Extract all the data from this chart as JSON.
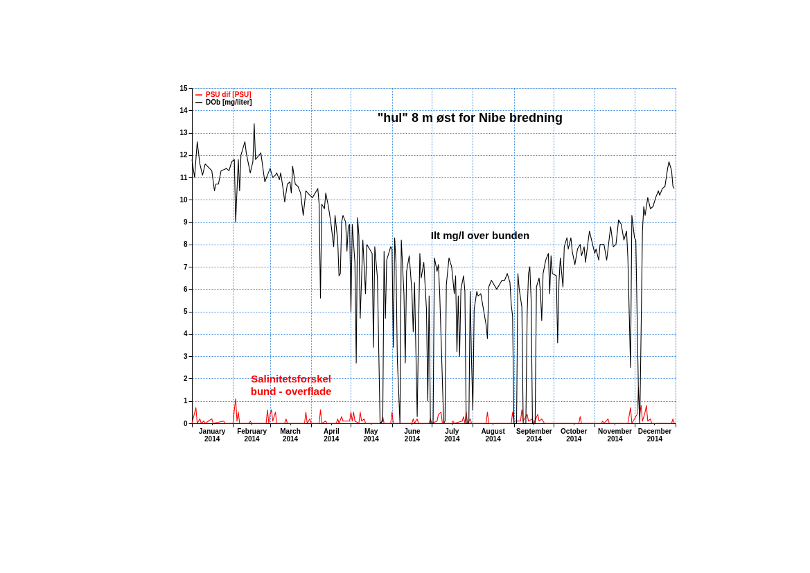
{
  "chart_data": {
    "type": "line",
    "title": "\"hul\" 8 m øst for Nibe bredning",
    "xlim": [
      "2014-01-01",
      "2015-01-01"
    ],
    "xticks": [
      {
        "value": "2014-01-01",
        "label": null
      },
      {
        "value": "2014-01-16",
        "label": "January 2014"
      },
      {
        "value": "2014-02-01",
        "label": null
      },
      {
        "value": "2014-02-15",
        "label": "February 2014"
      },
      {
        "value": "2014-03-01",
        "label": null
      },
      {
        "value": "2014-03-16",
        "label": "March 2014"
      },
      {
        "value": "2014-04-01",
        "label": null
      },
      {
        "value": "2014-04-16",
        "label": "April 2014"
      },
      {
        "value": "2014-05-01",
        "label": null
      },
      {
        "value": "2014-05-16",
        "label": "May 2014"
      },
      {
        "value": "2014-06-01",
        "label": null
      },
      {
        "value": "2014-06-16",
        "label": "June 2014"
      },
      {
        "value": "2014-07-01",
        "label": null
      },
      {
        "value": "2014-07-16",
        "label": "July 2014"
      },
      {
        "value": "2014-08-01",
        "label": null
      },
      {
        "value": "2014-08-16",
        "label": "August 2014"
      },
      {
        "value": "2014-09-01",
        "label": null
      },
      {
        "value": "2014-09-16",
        "label": "September 2014"
      },
      {
        "value": "2014-10-01",
        "label": null
      },
      {
        "value": "2014-10-16",
        "label": "October 2014"
      },
      {
        "value": "2014-11-01",
        "label": null
      },
      {
        "value": "2014-11-16",
        "label": "November 2014"
      },
      {
        "value": "2014-12-01",
        "label": null
      },
      {
        "value": "2014-12-16",
        "label": "December 2014"
      },
      {
        "value": "2015-01-01",
        "label": null
      }
    ],
    "ylim": [
      0,
      15
    ],
    "yticks": [
      0,
      1,
      2,
      3,
      4,
      5,
      6,
      7,
      8,
      9,
      10,
      11,
      12,
      13,
      14,
      15
    ],
    "grid": true,
    "legend": "top left",
    "marker": "none",
    "line_style": "solid",
    "annotations": [
      "Salinitetsforskel\nbund - overflade",
      "Ilt mg/l over bunden"
    ],
    "series": [
      {
        "name": "PSU dif [PSU]",
        "color": "#ff0000",
        "x": [
          "2014-01-01",
          "2014-01-04",
          "2014-01-05",
          "2014-01-07",
          "2014-01-08",
          "2014-01-10",
          "2014-01-11",
          "2014-01-16",
          "2014-01-17",
          "2014-01-25",
          "2014-01-26",
          "2014-02-01",
          "2014-02-02",
          "2014-02-03",
          "2014-02-04",
          "2014-02-05",
          "2014-02-06",
          "2014-02-13",
          "2014-02-14",
          "2014-02-15",
          "2014-02-26",
          "2014-02-27",
          "2014-02-28",
          "2014-03-01",
          "2014-03-02",
          "2014-03-03",
          "2014-03-05",
          "2014-03-06",
          "2014-03-12",
          "2014-03-13",
          "2014-03-14",
          "2014-03-27",
          "2014-03-28",
          "2014-03-29",
          "2014-03-31",
          "2014-04-01",
          "2014-04-07",
          "2014-04-08",
          "2014-04-09",
          "2014-04-12",
          "2014-04-13",
          "2014-04-20",
          "2014-04-21",
          "2014-04-22",
          "2014-04-24",
          "2014-04-25",
          "2014-04-30",
          "2014-05-01",
          "2014-05-02",
          "2014-05-03",
          "2014-05-04",
          "2014-05-07",
          "2014-05-08",
          "2014-05-09",
          "2014-05-11",
          "2014-05-12",
          "2014-05-24",
          "2014-05-25",
          "2014-05-26",
          "2014-05-31",
          "2014-06-01",
          "2014-06-02",
          "2014-06-16",
          "2014-06-17",
          "2014-06-18",
          "2014-06-20",
          "2014-06-21",
          "2014-06-29",
          "2014-06-30",
          "2014-07-01",
          "2014-07-05",
          "2014-07-06",
          "2014-07-08",
          "2014-07-09",
          "2014-07-16",
          "2014-07-17",
          "2014-07-18",
          "2014-07-24",
          "2014-07-25",
          "2014-07-26",
          "2014-07-27",
          "2014-07-28",
          "2014-07-30",
          "2014-07-31",
          "2014-08-11",
          "2014-08-12",
          "2014-08-13",
          "2014-08-30",
          "2014-08-31",
          "2014-09-01",
          "2014-09-06",
          "2014-09-07",
          "2014-09-08",
          "2014-09-11",
          "2014-09-12",
          "2014-09-15",
          "2014-09-16",
          "2014-09-19",
          "2014-09-20",
          "2014-09-22",
          "2014-09-24",
          "2014-10-20",
          "2014-10-21",
          "2014-10-22",
          "2014-11-06",
          "2014-11-07",
          "2014-11-08",
          "2014-11-11",
          "2014-11-12",
          "2014-11-26",
          "2014-11-28",
          "2014-11-29",
          "2014-12-01",
          "2014-12-03",
          "2014-12-04",
          "2014-12-05",
          "2014-12-06",
          "2014-12-07",
          "2014-12-09",
          "2014-12-10",
          "2014-12-11",
          "2014-12-13",
          "2014-12-14",
          "2014-12-29",
          "2014-12-30",
          "2014-12-31"
        ],
        "values": [
          0,
          0.7,
          0,
          0.2,
          0,
          0.1,
          0,
          0.2,
          0,
          0.1,
          0,
          0,
          0.6,
          1.1,
          0.1,
          0.5,
          0,
          0,
          0.1,
          0,
          0,
          0.6,
          0,
          0.4,
          0.6,
          0.1,
          0.5,
          0,
          0,
          0.2,
          0,
          0,
          0.5,
          0,
          0.2,
          0,
          0,
          0.6,
          0,
          0.1,
          0,
          0,
          0.2,
          0,
          0.3,
          0.1,
          0.1,
          0.5,
          0.1,
          0.5,
          0.1,
          0,
          0.5,
          0.1,
          0.2,
          0,
          0,
          0.3,
          0,
          0,
          0.5,
          0,
          0,
          0.2,
          0,
          0.2,
          0,
          0,
          0.2,
          0,
          0.1,
          0.4,
          0.5,
          0,
          0,
          0.1,
          0,
          0.1,
          0.3,
          0,
          0.5,
          0,
          0.2,
          0,
          0,
          0.5,
          0,
          0,
          0.5,
          0.1,
          0.1,
          0.6,
          0.1,
          0.4,
          0.1,
          0.2,
          0,
          0.4,
          0.1,
          0.2,
          0,
          0,
          0.3,
          0,
          0,
          0.1,
          0,
          0.2,
          0,
          0,
          0.7,
          0,
          0.2,
          0.4,
          1.6,
          0.4,
          0.8,
          0.1,
          0.5,
          0.8,
          0.1,
          0.2,
          0,
          0,
          0.2,
          0
        ]
      },
      {
        "name": "DOb [mg/liter]",
        "color": "#000000",
        "x": [
          "2014-01-01",
          "2014-01-03",
          "2014-01-05",
          "2014-01-07",
          "2014-01-09",
          "2014-01-11",
          "2014-01-16",
          "2014-01-18",
          "2014-01-19",
          "2014-01-21",
          "2014-01-23",
          "2014-01-27",
          "2014-01-29",
          "2014-01-31",
          "2014-02-02",
          "2014-02-03",
          "2014-02-05",
          "2014-02-06",
          "2014-02-07",
          "2014-02-10",
          "2014-02-11",
          "2014-02-14",
          "2014-02-16",
          "2014-02-17",
          "2014-02-18",
          "2014-02-22",
          "2014-02-25",
          "2014-02-27",
          "2014-03-01",
          "2014-03-03",
          "2014-03-05",
          "2014-03-06",
          "2014-03-08",
          "2014-03-09",
          "2014-03-11",
          "2014-03-12",
          "2014-03-14",
          "2014-03-16",
          "2014-03-17",
          "2014-03-18",
          "2014-03-20",
          "2014-03-22",
          "2014-03-24",
          "2014-03-26",
          "2014-03-28",
          "2014-03-31",
          "2014-04-02",
          "2014-04-06",
          "2014-04-07",
          "2014-04-08",
          "2014-04-09",
          "2014-04-11",
          "2014-04-12",
          "2014-04-14",
          "2014-04-16",
          "2014-04-18",
          "2014-04-19",
          "2014-04-21",
          "2014-04-22",
          "2014-04-23",
          "2014-04-24",
          "2014-04-25",
          "2014-04-27",
          "2014-04-28",
          "2014-04-29",
          "2014-04-30",
          "2014-05-01",
          "2014-05-02",
          "2014-05-04",
          "2014-05-05",
          "2014-05-06",
          "2014-05-07",
          "2014-05-08",
          "2014-05-10",
          "2014-05-12",
          "2014-05-13",
          "2014-05-15",
          "2014-05-17",
          "2014-05-18",
          "2014-05-19",
          "2014-05-21",
          "2014-05-23",
          "2014-05-25",
          "2014-05-26",
          "2014-05-27",
          "2014-05-28",
          "2014-05-31",
          "2014-06-01",
          "2014-06-02",
          "2014-06-03",
          "2014-06-04",
          "2014-06-05",
          "2014-06-07",
          "2014-06-08",
          "2014-06-10",
          "2014-06-11",
          "2014-06-12",
          "2014-06-14",
          "2014-06-16",
          "2014-06-17",
          "2014-06-18",
          "2014-06-20",
          "2014-06-21",
          "2014-06-22",
          "2014-06-23",
          "2014-06-25",
          "2014-06-27",
          "2014-06-28",
          "2014-06-29",
          "2014-06-30",
          "2014-07-02",
          "2014-07-03",
          "2014-07-05",
          "2014-07-06",
          "2014-07-07",
          "2014-07-10",
          "2014-07-11",
          "2014-07-12",
          "2014-07-14",
          "2014-07-15",
          "2014-07-16",
          "2014-07-18",
          "2014-07-19",
          "2014-07-20",
          "2014-07-21",
          "2014-07-22",
          "2014-07-23",
          "2014-07-25",
          "2014-07-26",
          "2014-07-27",
          "2014-07-29",
          "2014-07-30",
          "2014-07-31",
          "2014-08-01",
          "2014-08-02",
          "2014-08-04",
          "2014-08-05",
          "2014-08-07",
          "2014-08-09",
          "2014-08-11",
          "2014-08-12",
          "2014-08-13",
          "2014-08-15",
          "2014-08-17",
          "2014-08-19",
          "2014-08-21",
          "2014-08-23",
          "2014-08-25",
          "2014-08-27",
          "2014-08-29",
          "2014-08-30",
          "2014-08-31",
          "2014-09-01",
          "2014-09-03",
          "2014-09-04",
          "2014-09-05",
          "2014-09-07",
          "2014-09-08",
          "2014-09-10",
          "2014-09-11",
          "2014-09-12",
          "2014-09-13",
          "2014-09-14",
          "2014-09-15",
          "2014-09-17",
          "2014-09-18",
          "2014-09-20",
          "2014-09-21",
          "2014-09-22",
          "2014-09-23",
          "2014-09-25",
          "2014-09-27",
          "2014-09-28",
          "2014-09-29",
          "2014-09-30",
          "2014-10-03",
          "2014-10-04",
          "2014-10-05",
          "2014-10-06",
          "2014-10-08",
          "2014-10-09",
          "2014-10-11",
          "2014-10-12",
          "2014-10-14",
          "2014-10-15",
          "2014-10-17",
          "2014-10-19",
          "2014-10-21",
          "2014-10-22",
          "2014-10-24",
          "2014-10-25",
          "2014-10-28",
          "2014-10-30",
          "2014-11-01",
          "2014-11-02",
          "2014-11-04",
          "2014-11-05",
          "2014-11-08",
          "2014-11-10",
          "2014-11-13",
          "2014-11-15",
          "2014-11-17",
          "2014-11-19",
          "2014-11-21",
          "2014-11-23",
          "2014-11-25",
          "2014-11-26",
          "2014-11-28",
          "2014-11-29",
          "2014-12-01",
          "2014-12-02",
          "2014-12-04",
          "2014-12-05",
          "2014-12-06",
          "2014-12-07",
          "2014-12-08",
          "2014-12-09",
          "2014-12-11",
          "2014-12-13",
          "2014-12-15",
          "2014-12-17",
          "2014-12-19",
          "2014-12-20",
          "2014-12-22",
          "2014-12-24",
          "2014-12-26",
          "2014-12-27",
          "2014-12-29",
          "2014-12-30",
          "2014-12-31"
        ],
        "values": [
          11.8,
          11.0,
          12.6,
          11.6,
          11.1,
          11.6,
          11.3,
          10.4,
          10.7,
          10.7,
          11.3,
          11.4,
          11.3,
          11.7,
          11.8,
          9.0,
          11.8,
          10.4,
          12.0,
          12.6,
          12.1,
          11.2,
          11.7,
          13.4,
          11.8,
          12.1,
          10.8,
          11.1,
          11.4,
          11.0,
          11.1,
          11.2,
          10.9,
          11.2,
          10.4,
          9.9,
          10.7,
          10.8,
          10.3,
          11.5,
          10.7,
          10.6,
          10.3,
          9.3,
          10.4,
          10.2,
          10.1,
          10.5,
          9.8,
          5.6,
          9.8,
          9.6,
          10.3,
          9.7,
          8.9,
          7.9,
          9.3,
          8.2,
          6.6,
          6.7,
          9.0,
          9.3,
          9.0,
          7.7,
          8.8,
          8.9,
          5.0,
          8.9,
          7.2,
          2.7,
          9.2,
          8.4,
          4.7,
          8.2,
          5.8,
          8.0,
          7.8,
          7.6,
          3.4,
          7.9,
          6.5,
          0.0,
          0.1,
          7.7,
          4.7,
          7.3,
          7.9,
          7.8,
          3.4,
          8.3,
          7.2,
          2.9,
          0.0,
          8.2,
          5.8,
          2.7,
          6.8,
          7.5,
          5.9,
          4.1,
          6.3,
          0.3,
          4.1,
          7.6,
          6.5,
          7.2,
          5.1,
          1.0,
          5.7,
          0.0,
          0.0,
          7.4,
          6.8,
          7.1,
          5.8,
          0.0,
          0.1,
          6.2,
          7.4,
          7.2,
          7.0,
          5.8,
          6.6,
          3.2,
          5.7,
          3.0,
          6.0,
          6.6,
          5.9,
          0.0,
          0.0,
          5.9,
          2.8,
          0.6,
          5.1,
          5.9,
          5.7,
          5.8,
          5.1,
          4.4,
          3.8,
          6.1,
          6.4,
          6.2,
          6.0,
          6.2,
          6.4,
          6.4,
          6.7,
          6.3,
          5.3,
          4.8,
          0.0,
          0.0,
          6.7,
          6.0,
          5.2,
          0.0,
          0.0,
          4.9,
          6.7,
          7.0,
          5.5,
          0.0,
          0.0,
          6.1,
          6.5,
          5.9,
          4.6,
          6.7,
          7.3,
          7.6,
          5.8,
          7.5,
          6.7,
          6.6,
          3.6,
          6.3,
          7.4,
          6.1,
          7.9,
          8.3,
          7.8,
          8.3,
          7.7,
          7.1,
          7.8,
          8.0,
          7.5,
          7.9,
          7.2,
          8.6,
          8.1,
          7.6,
          7.8,
          7.3,
          8.0,
          8.0,
          7.3,
          8.8,
          7.9,
          8.0,
          9.1,
          8.9,
          8.2,
          8.6,
          7.4,
          2.5,
          9.3,
          8.3,
          8.2,
          1.3,
          0.0,
          4.2,
          8.6,
          9.7,
          9.3,
          10.1,
          9.6,
          9.7,
          10.1,
          10.4,
          10.2,
          10.5,
          10.6,
          11.4,
          11.7,
          11.3,
          10.6,
          10.5
        ]
      }
    ]
  }
}
